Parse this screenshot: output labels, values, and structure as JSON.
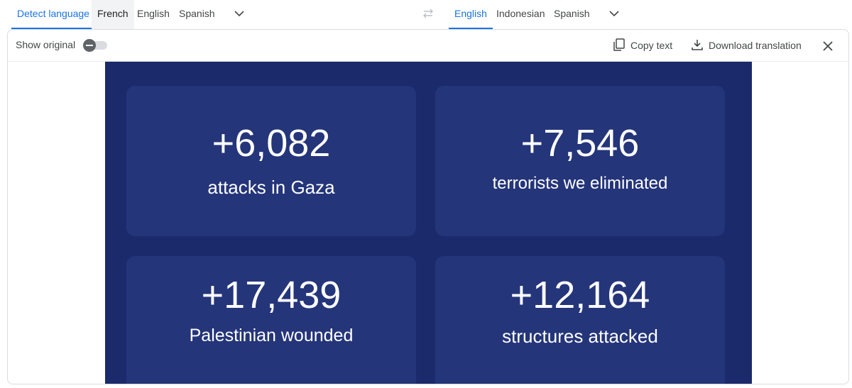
{
  "source_languages": {
    "tabs": [
      "Detect language",
      "French",
      "English",
      "Spanish"
    ]
  },
  "target_languages": {
    "tabs": [
      "English",
      "Indonesian",
      "Spanish"
    ]
  },
  "toolbar": {
    "show_original": "Show original",
    "show_original_toggle": "off",
    "copy_text": "Copy text",
    "download_translation": "Download translation"
  },
  "image": {
    "cards": [
      {
        "number": "+6,082",
        "label": "attacks in Gaza"
      },
      {
        "number": "+7,546",
        "label": "terrorists we eliminated"
      },
      {
        "number": "+17,439",
        "label": "Palestinian wounded"
      },
      {
        "number": "+12,164",
        "label": "structures attacked"
      }
    ]
  },
  "icons": {
    "dropdown": "chevron-down-icon",
    "swap": "swap-languages-icon",
    "copy": "copy-icon",
    "download": "download-icon",
    "close": "close-icon"
  },
  "colors": {
    "accent": "#1a73e8",
    "image_background": "#1b2a6b",
    "card_background": "#24357a"
  }
}
